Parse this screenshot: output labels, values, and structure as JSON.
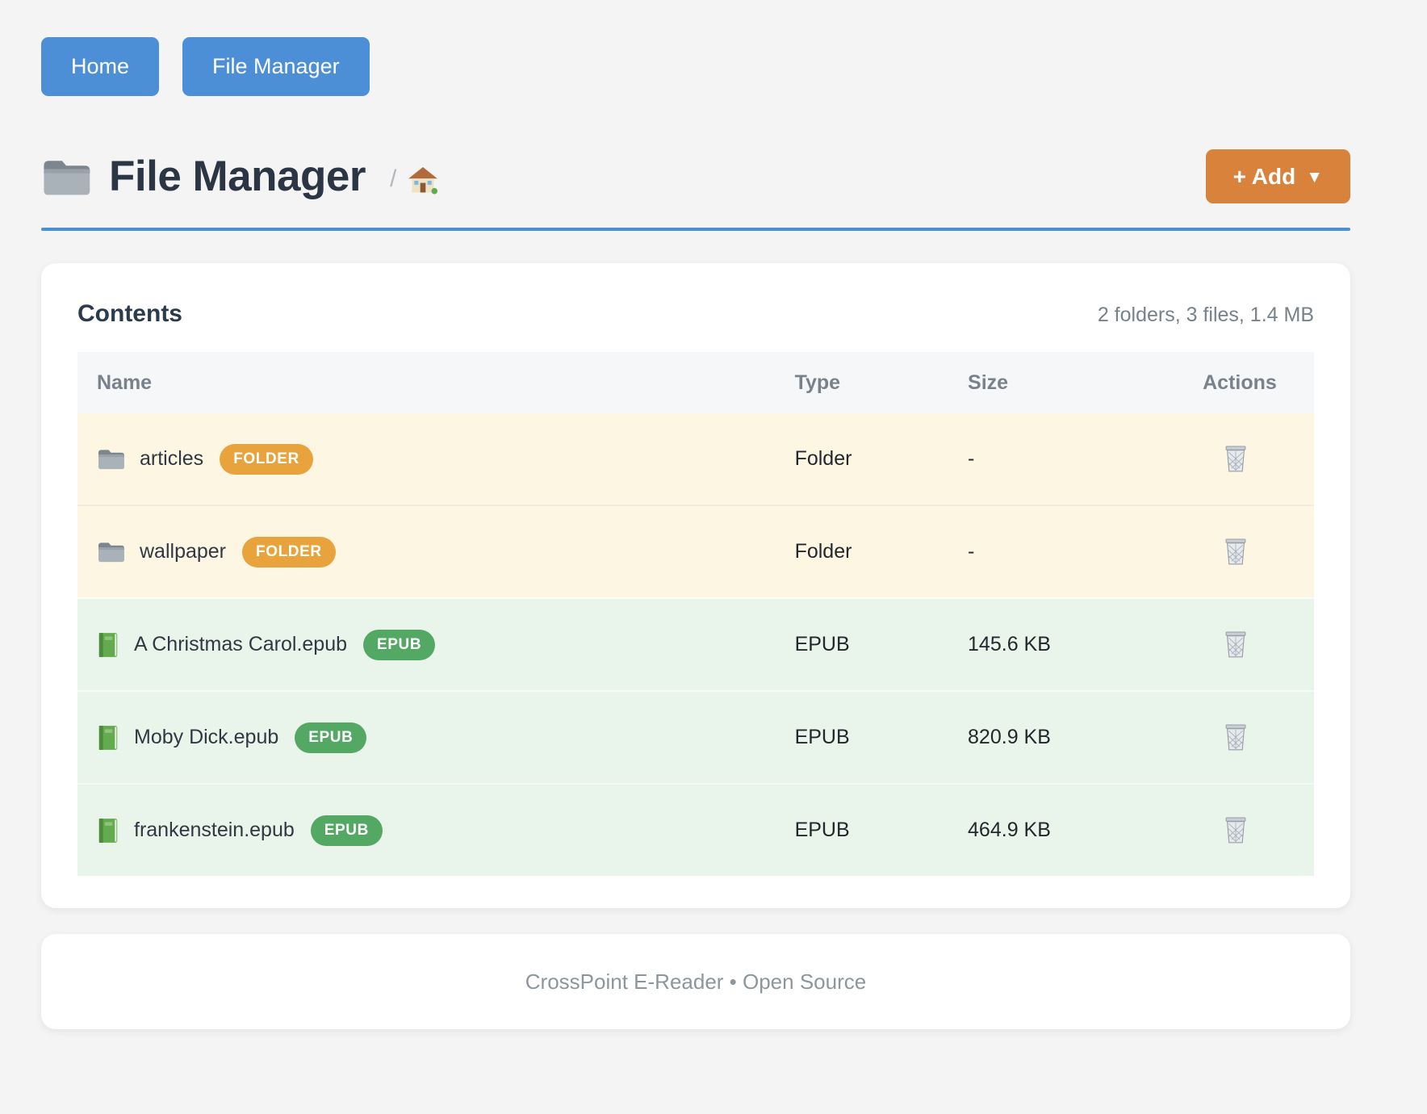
{
  "nav": {
    "home_label": "Home",
    "file_manager_label": "File Manager"
  },
  "header": {
    "title": "File Manager",
    "title_icon": "folder",
    "breadcrumb": {
      "separator": "/",
      "home_icon": "house"
    },
    "add_button": {
      "label": "+ Add",
      "caret": "▼",
      "color": "#d9823c"
    }
  },
  "contents": {
    "heading": "Contents",
    "summary": "2 folders, 3 files, 1.4 MB",
    "table": {
      "columns": [
        "Name",
        "Type",
        "Size",
        "Actions"
      ],
      "action_icon": "trash",
      "rows": [
        {
          "icon": "folder",
          "name": "articles",
          "badge": "FOLDER",
          "type": "Folder",
          "size": "-",
          "kind": "folder"
        },
        {
          "icon": "folder",
          "name": "wallpaper",
          "badge": "FOLDER",
          "type": "Folder",
          "size": "-",
          "kind": "folder"
        },
        {
          "icon": "book",
          "name": "A Christmas Carol.epub",
          "badge": "EPUB",
          "type": "EPUB",
          "size": "145.6 KB",
          "kind": "epub"
        },
        {
          "icon": "book",
          "name": "Moby Dick.epub",
          "badge": "EPUB",
          "type": "EPUB",
          "size": "820.9 KB",
          "kind": "epub"
        },
        {
          "icon": "book",
          "name": "frankenstein.epub",
          "badge": "EPUB",
          "type": "EPUB",
          "size": "464.9 KB",
          "kind": "epub"
        }
      ]
    }
  },
  "footer": {
    "text": "CrossPoint E-Reader • Open Source"
  },
  "colors": {
    "page_background": "#f4f4f5",
    "accent_blue": "#4d8fd6",
    "add_orange": "#d9823c",
    "folder_badge_orange": "#e8a33d",
    "epub_badge_green": "#53a863",
    "folder_row_background": "#fdf6e3",
    "epub_row_background": "#e9f4ea"
  }
}
